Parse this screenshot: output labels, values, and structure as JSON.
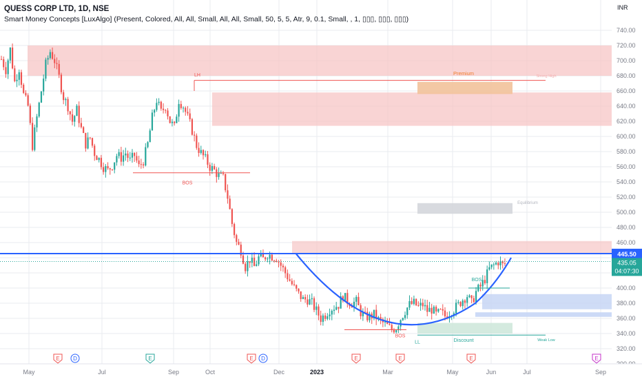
{
  "header": {
    "symbol": "QUESS CORP LTD, 1D, NSE",
    "indicator": "Smart Money Concepts [LuxAlgo] (Present, Colored, All, All, Small, All, All, Small, 50, 5, 5, Atr, 9, 0.1, Small, , 1, ▯▯▯, ▯▯▯, ▯▯▯)"
  },
  "colors": {
    "candle_up": "#26a69a",
    "candle_down": "#ef5350",
    "price_line": "#2962ff",
    "bearish_zone": "#f7c6c6",
    "bullish_zone": "#c7d6f5",
    "discount_zone": "#cfe8dc",
    "equilibrium_zone": "#d4d6dc",
    "premium_zone": "#f2c29a",
    "axis_text": "#787b86",
    "grid": "#e9ebef"
  },
  "chart_data": {
    "type": "candlestick",
    "currency": "INR",
    "ylim": [
      300,
      750
    ],
    "y_ticks": [
      "300.00",
      "320.00",
      "340.00",
      "360.00",
      "380.00",
      "400.00",
      "420.00",
      "440.00",
      "460.00",
      "480.00",
      "500.00",
      "520.00",
      "540.00",
      "560.00",
      "580.00",
      "600.00",
      "620.00",
      "640.00",
      "660.00",
      "680.00",
      "700.00",
      "720.00",
      "740.00"
    ],
    "x_labels": [
      "May",
      "Jul",
      "Sep",
      "Oct",
      "Dec",
      "2023",
      "Mar",
      "May",
      "Jun",
      "Jul",
      "Sep"
    ],
    "price_close_path": [
      [
        0,
        702
      ],
      [
        2,
        688
      ],
      [
        4,
        715
      ],
      [
        6,
        672
      ],
      [
        8,
        690
      ],
      [
        10,
        655
      ],
      [
        12,
        640
      ],
      [
        14,
        588
      ],
      [
        16,
        625
      ],
      [
        18,
        660
      ],
      [
        20,
        695
      ],
      [
        22,
        712
      ],
      [
        24,
        700
      ],
      [
        26,
        678
      ],
      [
        28,
        652
      ],
      [
        30,
        640
      ],
      [
        32,
        620
      ],
      [
        34,
        635
      ],
      [
        36,
        610
      ],
      [
        38,
        590
      ],
      [
        40,
        598
      ],
      [
        42,
        578
      ],
      [
        44,
        570
      ],
      [
        46,
        560
      ],
      [
        48,
        555
      ],
      [
        50,
        562
      ],
      [
        52,
        575
      ],
      [
        54,
        572
      ],
      [
        56,
        578
      ],
      [
        58,
        568
      ],
      [
        60,
        575
      ],
      [
        62,
        560
      ],
      [
        64,
        568
      ],
      [
        66,
        590
      ],
      [
        68,
        625
      ],
      [
        70,
        648
      ],
      [
        72,
        632
      ],
      [
        74,
        640
      ],
      [
        76,
        620
      ],
      [
        78,
        612
      ],
      [
        80,
        648
      ],
      [
        82,
        640
      ],
      [
        84,
        625
      ],
      [
        86,
        608
      ],
      [
        88,
        588
      ],
      [
        90,
        578
      ],
      [
        92,
        570
      ],
      [
        94,
        560
      ],
      [
        96,
        555
      ],
      [
        98,
        548
      ],
      [
        100,
        545
      ],
      [
        102,
        520
      ],
      [
        104,
        485
      ],
      [
        106,
        460
      ],
      [
        108,
        450
      ],
      [
        110,
        428
      ],
      [
        112,
        438
      ],
      [
        114,
        428
      ],
      [
        116,
        440
      ],
      [
        118,
        438
      ],
      [
        120,
        445
      ],
      [
        122,
        442
      ],
      [
        124,
        440
      ],
      [
        126,
        430
      ],
      [
        128,
        420
      ],
      [
        130,
        410
      ],
      [
        132,
        400
      ],
      [
        134,
        392
      ],
      [
        136,
        385
      ],
      [
        138,
        385
      ],
      [
        140,
        380
      ],
      [
        142,
        370
      ],
      [
        144,
        360
      ],
      [
        146,
        365
      ],
      [
        148,
        372
      ],
      [
        150,
        375
      ],
      [
        152,
        378
      ],
      [
        154,
        390
      ],
      [
        156,
        383
      ],
      [
        158,
        380
      ],
      [
        160,
        382
      ],
      [
        162,
        368
      ],
      [
        164,
        362
      ],
      [
        166,
        362
      ],
      [
        168,
        365
      ],
      [
        170,
        358
      ],
      [
        172,
        354
      ],
      [
        174,
        350
      ],
      [
        176,
        345
      ],
      [
        178,
        348
      ],
      [
        180,
        360
      ],
      [
        182,
        370
      ],
      [
        184,
        378
      ],
      [
        186,
        380
      ],
      [
        188,
        375
      ],
      [
        190,
        378
      ],
      [
        192,
        370
      ],
      [
        194,
        372
      ],
      [
        196,
        365
      ],
      [
        198,
        368
      ],
      [
        200,
        363
      ],
      [
        202,
        368
      ],
      [
        204,
        372
      ],
      [
        206,
        378
      ],
      [
        208,
        385
      ],
      [
        210,
        390
      ],
      [
        212,
        380
      ],
      [
        214,
        395
      ],
      [
        216,
        402
      ],
      [
        218,
        412
      ],
      [
        220,
        425
      ],
      [
        222,
        430
      ],
      [
        224,
        435
      ],
      [
        226,
        430
      ],
      [
        228,
        435
      ]
    ],
    "last_visible_price": 435.05,
    "structure_labels": [
      {
        "text": "LH",
        "price": 674
      },
      {
        "text": "BOS",
        "price": 552
      },
      {
        "text": "BOS",
        "price": 345
      },
      {
        "text": "BOS",
        "price": 406
      },
      {
        "text": "LL",
        "price": 338
      },
      {
        "text": "Premium",
        "price": 677
      },
      {
        "text": "Strong High",
        "price": 677
      },
      {
        "text": "Equilibrium",
        "price": 507
      },
      {
        "text": "Discount",
        "price": 339
      },
      {
        "text": "Weak Low",
        "price": 336
      }
    ],
    "horizontal_line": {
      "value": 445.5,
      "color": "#2962ff"
    },
    "event_markers": [
      {
        "text": "E",
        "color": "#ef5350"
      },
      {
        "text": "D",
        "color": "#2962ff"
      },
      {
        "text": "E",
        "color": "#26a69a"
      },
      {
        "text": "E",
        "color": "#ef5350"
      },
      {
        "text": "D",
        "color": "#2962ff"
      },
      {
        "text": "E",
        "color": "#ef5350"
      },
      {
        "text": "E",
        "color": "#ef5350"
      },
      {
        "text": "E",
        "color": "#ef5350"
      },
      {
        "text": "E",
        "color": "#c430c8"
      }
    ]
  },
  "price_tags": {
    "line_price": "445.50",
    "last_price": "435.05",
    "countdown": "04:07:30"
  }
}
